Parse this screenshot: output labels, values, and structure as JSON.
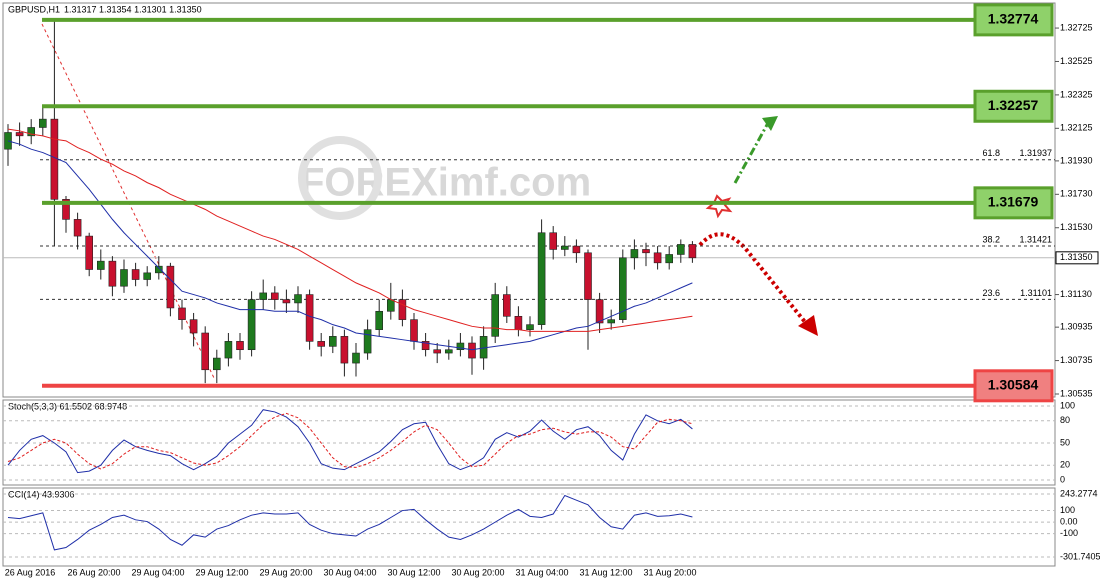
{
  "chart_data": {
    "type": "candlestick",
    "symbol": "GBPUSD,H1",
    "quote": "1.31317 1.31354 1.31301 1.31350",
    "watermark": "FOREXimf.com",
    "bull_color": "#1e7a1e",
    "bear_color": "#c8102e",
    "open": [
      1.32,
      1.321,
      1.3208,
      1.3213,
      1.3218,
      1.317,
      1.3158,
      1.3148,
      1.3128,
      1.3133,
      1.3118,
      1.3128,
      1.3122,
      1.3126,
      1.313,
      1.3105,
      1.3098,
      1.309,
      1.3068,
      1.3075,
      1.3085,
      1.308,
      1.311,
      1.3114,
      1.311,
      1.3108,
      1.3113,
      1.3085,
      1.3082,
      1.3088,
      1.3072,
      1.3078,
      1.3092,
      1.3103,
      1.311,
      1.3098,
      1.3085,
      1.308,
      1.3078,
      1.308,
      1.3084,
      1.3075,
      1.3088,
      1.3113,
      1.31,
      1.3092,
      1.3095,
      1.315,
      1.314,
      1.3142,
      1.3138,
      1.311,
      1.3096,
      1.3098,
      1.3135,
      1.314,
      1.3138,
      1.3132,
      1.3137,
      1.3143
    ],
    "high": [
      1.3215,
      1.3216,
      1.3218,
      1.3225,
      1.32774,
      1.3172,
      1.3162,
      1.315,
      1.314,
      1.3136,
      1.3134,
      1.3132,
      1.313,
      1.3136,
      1.3132,
      1.311,
      1.3102,
      1.3094,
      1.308,
      1.309,
      1.309,
      1.3115,
      1.3122,
      1.3118,
      1.3116,
      1.3118,
      1.3116,
      1.309,
      1.3094,
      1.3092,
      1.3084,
      1.3098,
      1.311,
      1.312,
      1.3116,
      1.3102,
      1.309,
      1.3084,
      1.3086,
      1.309,
      1.3088,
      1.3094,
      1.312,
      1.3118,
      1.3106,
      1.31,
      1.3158,
      1.3154,
      1.3148,
      1.3146,
      1.314,
      1.3114,
      1.3104,
      1.314,
      1.3146,
      1.3144,
      1.3142,
      1.3142,
      1.3146,
      1.3145
    ],
    "low": [
      1.319,
      1.3202,
      1.3203,
      1.3208,
      1.3142,
      1.315,
      1.314,
      1.3124,
      1.3122,
      1.3112,
      1.3114,
      1.3118,
      1.3118,
      1.3122,
      1.31,
      1.3092,
      1.3082,
      1.306,
      1.306,
      1.307,
      1.3074,
      1.3076,
      1.3104,
      1.3104,
      1.3102,
      1.3102,
      1.308,
      1.3076,
      1.3078,
      1.3064,
      1.3064,
      1.3074,
      1.3088,
      1.3098,
      1.3094,
      1.308,
      1.3076,
      1.3072,
      1.3074,
      1.3076,
      1.3065,
      1.3068,
      1.3084,
      1.3096,
      1.3088,
      1.3088,
      1.3092,
      1.3134,
      1.3136,
      1.3132,
      1.308,
      1.309,
      1.3092,
      1.3096,
      1.3128,
      1.313,
      1.3128,
      1.3128,
      1.3132,
      1.3132
    ],
    "close": [
      1.321,
      1.3208,
      1.3213,
      1.3218,
      1.317,
      1.3158,
      1.3148,
      1.3128,
      1.3133,
      1.3118,
      1.3128,
      1.3122,
      1.3126,
      1.313,
      1.3105,
      1.3098,
      1.309,
      1.3068,
      1.3075,
      1.3085,
      1.308,
      1.311,
      1.3114,
      1.311,
      1.3108,
      1.3113,
      1.3085,
      1.3082,
      1.3088,
      1.3072,
      1.3078,
      1.3092,
      1.3103,
      1.311,
      1.3098,
      1.3085,
      1.308,
      1.3078,
      1.308,
      1.3084,
      1.3075,
      1.3088,
      1.3113,
      1.31,
      1.3092,
      1.3095,
      1.315,
      1.314,
      1.3142,
      1.3138,
      1.311,
      1.3096,
      1.3098,
      1.3135,
      1.314,
      1.3138,
      1.3132,
      1.3137,
      1.3143,
      1.3135
    ],
    "ma_fast": {
      "color": "#1f2fa8",
      "values": [
        1.3205,
        1.3203,
        1.32,
        1.3198,
        1.3195,
        1.3192,
        1.3184,
        1.3176,
        1.3167,
        1.3158,
        1.315,
        1.3143,
        1.3136,
        1.3129,
        1.3122,
        1.3115,
        1.3113,
        1.3111,
        1.3108,
        1.3106,
        1.3104,
        1.3104,
        1.3104,
        1.3103,
        1.3103,
        1.3103,
        1.31,
        1.3098,
        1.3095,
        1.3093,
        1.309,
        1.3089,
        1.3088,
        1.3087,
        1.3086,
        1.3085,
        1.3084,
        1.3083,
        1.3082,
        1.3081,
        1.308,
        1.3081,
        1.3082,
        1.3083,
        1.3084,
        1.3085,
        1.3087,
        1.3089,
        1.3091,
        1.3093,
        1.3094,
        1.3097,
        1.31,
        1.3103,
        1.3106,
        1.3108,
        1.3111,
        1.3114,
        1.3117,
        1.312
      ]
    },
    "ma_slow": {
      "color": "#e02020",
      "values": [
        1.3212,
        1.3211,
        1.3209,
        1.3208,
        1.3206,
        1.3205,
        1.3201,
        1.3198,
        1.3194,
        1.3191,
        1.3187,
        1.3184,
        1.318,
        1.3177,
        1.3173,
        1.317,
        1.3167,
        1.3164,
        1.316,
        1.3157,
        1.3154,
        1.3151,
        1.3148,
        1.3146,
        1.3143,
        1.314,
        1.3136,
        1.3132,
        1.3128,
        1.3124,
        1.312,
        1.3117,
        1.3114,
        1.311,
        1.3107,
        1.3104,
        1.3102,
        1.31,
        1.3098,
        1.3096,
        1.3094,
        1.3093,
        1.3093,
        1.3092,
        1.3092,
        1.3091,
        1.3091,
        1.3091,
        1.3091,
        1.3091,
        1.3091,
        1.3092,
        1.3093,
        1.3094,
        1.3095,
        1.3096,
        1.3097,
        1.3098,
        1.3099,
        1.31
      ]
    },
    "ylim": [
      1.30517,
      1.32863
    ],
    "yticks": [
      1.32725,
      1.32525,
      1.32325,
      1.32125,
      {
        "value": 1.3193,
        "label": "1.31930"
      },
      {
        "value": 1.3173,
        "label": "1.31730"
      },
      {
        "value": 1.3153,
        "label": "1.31530"
      },
      {
        "value": 1.3113,
        "label": "1.31130"
      },
      1.30935,
      1.30735,
      1.30535
    ],
    "current_price": {
      "value": 1.3135,
      "label": "1.31350"
    },
    "levels": [
      {
        "value": 1.32774,
        "color": "#5aa02c"
      },
      {
        "value": 1.32257,
        "color": "#5aa02c"
      },
      {
        "value": 1.31679,
        "color": "#5aa02c"
      },
      {
        "value": 1.30584,
        "color": "#ee4444"
      }
    ],
    "fib": [
      {
        "level": 61.8,
        "price": 1.31937
      },
      {
        "level": 38.2,
        "price": 1.31421
      },
      {
        "level": 23.6,
        "price": 1.31101
      }
    ],
    "x_labels": [
      "26 Aug 2016",
      "26 Aug 20:00",
      "29 Aug 04:00",
      "29 Aug 12:00",
      "29 Aug 20:00",
      "30 Aug 04:00",
      "30 Aug 12:00",
      "30 Aug 20:00",
      "31 Aug 04:00",
      "31 Aug 12:00",
      "31 Aug 20:00"
    ],
    "stoch": {
      "title": "Stoch(5,3,3) 61.5502 68.9748",
      "ylim": [
        0,
        100
      ],
      "yticks": [
        100,
        80,
        50,
        20,
        0
      ],
      "k": {
        "color": "#1f2fa8",
        "values": [
          20,
          40,
          55,
          60,
          50,
          38,
          10,
          12,
          20,
          40,
          54,
          45,
          40,
          36,
          33,
          22,
          14,
          22,
          32,
          50,
          62,
          74,
          95,
          92,
          85,
          72,
          50,
          22,
          16,
          14,
          22,
          30,
          38,
          52,
          68,
          76,
          78,
          48,
          22,
          14,
          20,
          30,
          55,
          64,
          58,
          66,
          81,
          66,
          55,
          68,
          72,
          60,
          40,
          27,
          62,
          88,
          80,
          76,
          82,
          69
        ]
      },
      "d": {
        "color": "#e02020",
        "values": [
          25,
          30,
          40,
          50,
          55,
          50,
          35,
          22,
          15,
          22,
          35,
          45,
          45,
          40,
          37,
          30,
          23,
          20,
          23,
          33,
          45,
          60,
          75,
          85,
          90,
          84,
          70,
          50,
          30,
          18,
          17,
          22,
          30,
          40,
          52,
          65,
          74,
          68,
          50,
          30,
          18,
          20,
          35,
          50,
          60,
          62,
          68,
          70,
          65,
          62,
          65,
          65,
          58,
          45,
          42,
          60,
          78,
          82,
          80,
          76
        ]
      }
    },
    "cci": {
      "title": "CCI(14) 43.9306",
      "ylim": [
        -301.7405,
        243.2774
      ],
      "yticks": [
        243.2774,
        100,
        {
          "value": 0,
          "label": "0.00"
        },
        -100,
        -301.7405
      ],
      "color": "#1f2fa8",
      "values": [
        40,
        30,
        55,
        80,
        -240,
        -220,
        -150,
        -70,
        -20,
        40,
        60,
        20,
        5,
        -60,
        -150,
        -200,
        -110,
        -130,
        -60,
        -30,
        20,
        60,
        80,
        70,
        70,
        80,
        -20,
        -70,
        -100,
        -110,
        -120,
        -60,
        -20,
        40,
        100,
        110,
        20,
        -60,
        -130,
        -150,
        -110,
        -60,
        0,
        60,
        110,
        50,
        40,
        70,
        230,
        190,
        150,
        40,
        -40,
        -60,
        60,
        80,
        50,
        55,
        70,
        44
      ]
    }
  }
}
